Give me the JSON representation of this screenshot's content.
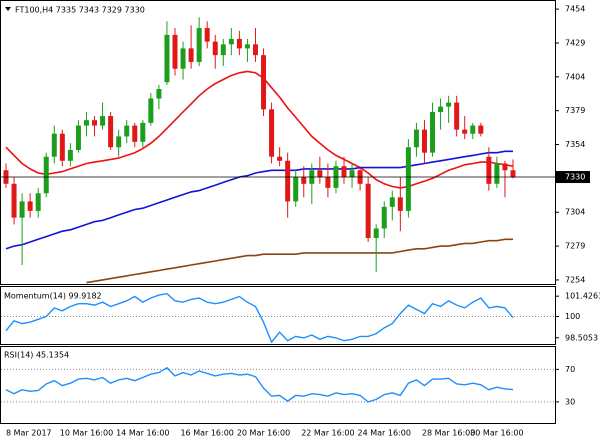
{
  "chart_data": [
    {
      "type": "candlestick",
      "title": "FT100,H4  7335 7343 7329 7330",
      "categories": [
        "8 Mar 2017",
        null,
        null,
        null,
        null,
        null,
        null,
        null,
        null,
        null,
        "10 Mar 16:00",
        null,
        null,
        null,
        null,
        null,
        null,
        "14 Mar 16:00",
        null,
        null,
        null,
        null,
        null,
        null,
        null,
        "16 Mar 16:00",
        null,
        null,
        null,
        null,
        null,
        null,
        "20 Mar 16:00",
        null,
        null,
        null,
        null,
        null,
        null,
        null,
        "22 Mar 16:00",
        null,
        null,
        null,
        null,
        null,
        null,
        "24 Mar 16:00",
        null,
        null,
        null,
        null,
        null,
        null,
        null,
        "28 Mar 16:00",
        null,
        null,
        null,
        null,
        null,
        "30 Mar 16:00",
        null,
        null
      ],
      "open": [
        7335,
        7325,
        7300,
        7312,
        7305,
        7318,
        7345,
        7362,
        7342,
        7350,
        7368,
        7372,
        7368,
        7375,
        7352,
        7360,
        7368,
        7356,
        7370,
        7388,
        7400,
        7435,
        7410,
        7425,
        7415,
        7440,
        7430,
        7420,
        7428,
        7432,
        7425,
        7428,
        7420,
        7380,
        7345,
        7342,
        7312,
        7330,
        7325,
        7335,
        7330,
        7322,
        7338,
        7330,
        7335,
        7325,
        7285,
        7292,
        7308,
        7315,
        7305,
        7352,
        7365,
        7348,
        7378,
        7382,
        7385,
        7365,
        7362,
        7368,
        7345,
        7325,
        7340,
        7335
      ],
      "high": [
        7340,
        7330,
        7318,
        7318,
        7322,
        7348,
        7368,
        7365,
        7355,
        7372,
        7378,
        7375,
        7385,
        7378,
        7365,
        7372,
        7370,
        7372,
        7392,
        7398,
        7445,
        7440,
        7430,
        7442,
        7448,
        7445,
        7435,
        7432,
        7440,
        7438,
        7432,
        7440,
        7425,
        7385,
        7352,
        7348,
        7335,
        7338,
        7340,
        7345,
        7340,
        7342,
        7345,
        7340,
        7338,
        7330,
        7295,
        7312,
        7320,
        7330,
        7358,
        7370,
        7372,
        7385,
        7388,
        7390,
        7390,
        7375,
        7370,
        7370,
        7352,
        7345,
        7342,
        7343
      ],
      "low": [
        7322,
        7295,
        7265,
        7300,
        7300,
        7315,
        7340,
        7338,
        7338,
        7348,
        7360,
        7360,
        7365,
        7350,
        7345,
        7355,
        7352,
        7352,
        7368,
        7380,
        7398,
        7405,
        7402,
        7410,
        7412,
        7425,
        7410,
        7412,
        7420,
        7420,
        7415,
        7415,
        7375,
        7340,
        7338,
        7300,
        7308,
        7315,
        7310,
        7325,
        7315,
        7318,
        7325,
        7322,
        7320,
        7282,
        7260,
        7285,
        7298,
        7290,
        7300,
        7345,
        7340,
        7345,
        7365,
        7370,
        7360,
        7358,
        7358,
        7360,
        7320,
        7322,
        7315,
        7329
      ],
      "close": [
        7325,
        7300,
        7312,
        7305,
        7318,
        7345,
        7362,
        7342,
        7350,
        7368,
        7372,
        7368,
        7375,
        7352,
        7360,
        7368,
        7356,
        7370,
        7388,
        7395,
        7435,
        7410,
        7425,
        7415,
        7440,
        7430,
        7420,
        7428,
        7432,
        7425,
        7428,
        7420,
        7380,
        7345,
        7342,
        7312,
        7330,
        7325,
        7335,
        7330,
        7322,
        7338,
        7330,
        7335,
        7325,
        7285,
        7292,
        7308,
        7315,
        7305,
        7352,
        7365,
        7348,
        7378,
        7382,
        7385,
        7365,
        7362,
        7368,
        7362,
        7325,
        7340,
        7335,
        7330
      ],
      "up_color": "#1c9e1c",
      "down_color": "#e01818",
      "overlays": [
        {
          "color": "#ee1111",
          "values": [
            7352,
            7346,
            7340,
            7336,
            7333,
            7332,
            7333,
            7334,
            7336,
            7338,
            7340,
            7341,
            7342,
            7343,
            7344,
            7346,
            7348,
            7351,
            7355,
            7360,
            7366,
            7372,
            7378,
            7384,
            7390,
            7395,
            7399,
            7402,
            7405,
            7407,
            7408,
            7407,
            7403,
            7396,
            7389,
            7381,
            7374,
            7367,
            7360,
            7355,
            7350,
            7346,
            7343,
            7340,
            7337,
            7333,
            7328,
            7325,
            7323,
            7322,
            7323,
            7325,
            7327,
            7329,
            7332,
            7335,
            7337,
            7339,
            7340,
            7341,
            7341,
            7340,
            7339,
            7338
          ]
        },
        {
          "color": "#1212d8",
          "values": [
            7277,
            7279,
            7280,
            7282,
            7284,
            7286,
            7288,
            7290,
            7291,
            7293,
            7295,
            7297,
            7298,
            7300,
            7302,
            7304,
            7306,
            7307,
            7309,
            7311,
            7313,
            7315,
            7317,
            7319,
            7320,
            7322,
            7324,
            7326,
            7328,
            7330,
            7331,
            7333,
            7334,
            7335,
            7335,
            7335,
            7335,
            7336,
            7336,
            7336,
            7336,
            7336,
            7336,
            7336,
            7337,
            7337,
            7337,
            7337,
            7337,
            7337,
            7338,
            7339,
            7340,
            7341,
            7342,
            7343,
            7344,
            7345,
            7346,
            7347,
            7348,
            7348,
            7349,
            7349
          ]
        },
        {
          "color": "#8b4513",
          "values": [
            null,
            null,
            null,
            null,
            null,
            null,
            null,
            null,
            null,
            null,
            7252,
            7253,
            7254,
            7255,
            7256,
            7257,
            7258,
            7259,
            7260,
            7261,
            7262,
            7263,
            7264,
            7265,
            7266,
            7267,
            7268,
            7269,
            7270,
            7271,
            7272,
            7272,
            7273,
            7273,
            7273,
            7273,
            7273,
            7274,
            7274,
            7274,
            7274,
            7274,
            7274,
            7274,
            7274,
            7274,
            7274,
            7274,
            7274,
            7275,
            7276,
            7277,
            7277,
            7278,
            7279,
            7279,
            7280,
            7281,
            7281,
            7282,
            7283,
            7283,
            7284,
            7284
          ]
        }
      ],
      "last_price": 7330,
      "ylim": [
        7251,
        7460
      ],
      "yticks": [
        7254,
        7279,
        7304,
        7354,
        7379,
        7404,
        7429,
        7454
      ]
    },
    {
      "type": "line",
      "title": "Momentum(14) 99.9182",
      "color": "#1e8fff",
      "values": [
        99.0,
        99.7,
        99.5,
        99.6,
        99.8,
        100.0,
        100.6,
        100.4,
        100.7,
        100.9,
        100.9,
        100.8,
        101.0,
        100.7,
        100.9,
        101.1,
        101.4,
        101.0,
        101.3,
        101.5,
        101.6,
        101.1,
        101.0,
        101.2,
        101.3,
        101.0,
        100.9,
        101.0,
        101.2,
        101.4,
        101.0,
        100.7,
        99.6,
        98.2,
        98.9,
        98.3,
        98.6,
        98.5,
        98.7,
        98.4,
        98.6,
        98.5,
        98.3,
        98.4,
        98.6,
        98.6,
        98.8,
        99.2,
        99.5,
        100.2,
        100.8,
        100.5,
        100.2,
        100.9,
        100.7,
        101.1,
        100.8,
        100.6,
        101.0,
        101.3,
        100.6,
        100.7,
        100.6,
        99.9182
      ],
      "ylim": [
        98.07,
        102.07
      ],
      "yticks": [
        98.5053,
        100,
        101.4263
      ],
      "levels": [
        100
      ]
    },
    {
      "type": "line",
      "title": "RSI(14) 45.1354",
      "color": "#1e8fff",
      "values": [
        45,
        40,
        45,
        43,
        44,
        52,
        56,
        50,
        53,
        58,
        59,
        57,
        60,
        53,
        57,
        59,
        56,
        60,
        64,
        66,
        72,
        62,
        66,
        63,
        68,
        65,
        62,
        64,
        65,
        63,
        64,
        61,
        47,
        37,
        38,
        31,
        38,
        37,
        40,
        39,
        37,
        41,
        39,
        40,
        38,
        30,
        33,
        39,
        41,
        38,
        53,
        57,
        50,
        58,
        58,
        59,
        52,
        51,
        53,
        51,
        45,
        48,
        46,
        45.1354
      ],
      "ylim": [
        4,
        97.5
      ],
      "yticks": [
        30,
        70
      ],
      "levels": [
        30,
        70
      ]
    }
  ]
}
